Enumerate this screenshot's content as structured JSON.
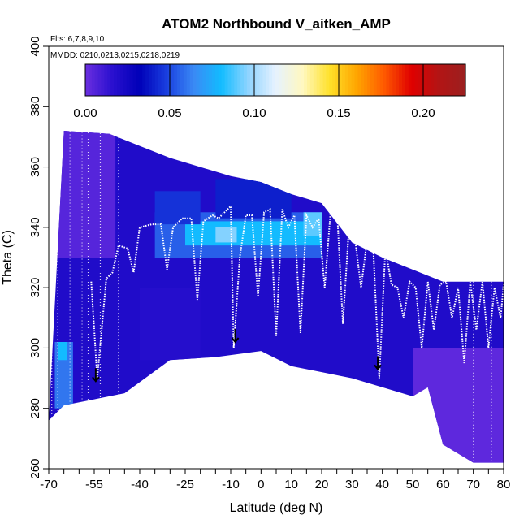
{
  "chart_data": {
    "type": "heatmap",
    "title": "ATOM2 Northbound V_aitken_AMP",
    "notes": [
      "Flts: 6,7,8,9,10",
      "MMDD: 0210,0213,0215,0218,0219"
    ],
    "xlabel": "Latitude (deg N)",
    "ylabel": "Theta (C)",
    "xlim": [
      -70,
      80
    ],
    "ylim": [
      260,
      400
    ],
    "x_ticks": [
      -70,
      -55,
      -40,
      -25,
      -10,
      0,
      10,
      20,
      30,
      40,
      50,
      60,
      70,
      80
    ],
    "x_tick_labels": [
      "-70",
      "-55",
      "-40",
      "-25",
      "-10",
      "0",
      "10",
      "20",
      "30",
      "40",
      "50",
      "60",
      "70",
      "80"
    ],
    "y_ticks": [
      260,
      280,
      300,
      320,
      340,
      360,
      380,
      400
    ],
    "y_tick_labels": [
      "260",
      "280",
      "300",
      "320",
      "340",
      "360",
      "380",
      "400"
    ],
    "colorbar": {
      "range": [
        0.0,
        0.225
      ],
      "ticks": [
        0.0,
        0.05,
        0.1,
        0.15,
        0.2
      ],
      "tick_labels": [
        "0.00",
        "0.05",
        "0.10",
        "0.15",
        "0.20"
      ],
      "colors": [
        "#6a2ee0",
        "#2a10cf",
        "#0000b8",
        "#1a3fe0",
        "#3a8af5",
        "#12bcff",
        "#8fd4ff",
        "#e6f2ff",
        "#fff8c0",
        "#ffe12a",
        "#ffa500",
        "#ff5a00",
        "#e00000",
        "#b31414",
        "#9b2020"
      ]
    },
    "upper_boundary": [
      [
        -65,
        372
      ],
      [
        -50,
        371
      ],
      [
        -40,
        367
      ],
      [
        -30,
        363
      ],
      [
        -20,
        360
      ],
      [
        -10,
        357
      ],
      [
        0,
        355
      ],
      [
        10,
        351
      ],
      [
        20,
        348
      ],
      [
        30,
        335
      ],
      [
        40,
        330
      ],
      [
        50,
        326
      ],
      [
        60,
        322
      ],
      [
        70,
        322
      ],
      [
        80,
        322
      ]
    ],
    "lower_boundary": [
      [
        -70,
        276
      ],
      [
        -65,
        281
      ],
      [
        -55,
        283
      ],
      [
        -45,
        285
      ],
      [
        -30,
        296
      ],
      [
        -15,
        297
      ],
      [
        0,
        299
      ],
      [
        10,
        294
      ],
      [
        20,
        292
      ],
      [
        30,
        290
      ],
      [
        40,
        287
      ],
      [
        50,
        284
      ],
      [
        55,
        287
      ],
      [
        60,
        268
      ],
      [
        70,
        262
      ],
      [
        80,
        262
      ]
    ],
    "background_value": 0.02,
    "regions": [
      {
        "lat": [
          -68,
          -62
        ],
        "theta": [
          280,
          302
        ],
        "value": 0.06
      },
      {
        "lat": [
          -67,
          -64
        ],
        "theta": [
          296,
          302
        ],
        "value": 0.08
      },
      {
        "lat": [
          -35,
          20
        ],
        "theta": [
          330,
          345
        ],
        "value": 0.055
      },
      {
        "lat": [
          -25,
          20
        ],
        "theta": [
          334,
          342
        ],
        "value": 0.08
      },
      {
        "lat": [
          -15,
          -8
        ],
        "theta": [
          335,
          340
        ],
        "value": 0.095
      },
      {
        "lat": [
          14,
          20
        ],
        "theta": [
          337,
          345
        ],
        "value": 0.09
      },
      {
        "lat": [
          -35,
          -20
        ],
        "theta": [
          341,
          352
        ],
        "value": 0.045
      },
      {
        "lat": [
          -15,
          10
        ],
        "theta": [
          343,
          356
        ],
        "value": 0.04
      },
      {
        "lat": [
          -70,
          -48
        ],
        "theta": [
          330,
          372
        ],
        "value": 0.005
      },
      {
        "lat": [
          50,
          80
        ],
        "theta": [
          262,
          300
        ],
        "value": 0.003
      },
      {
        "lat": [
          -40,
          -20
        ],
        "theta": [
          296,
          320
        ],
        "value": 0.018
      }
    ],
    "flight_track": [
      [
        -56,
        322
      ],
      [
        -54,
        290
      ],
      [
        -51,
        323
      ],
      [
        -49,
        325
      ],
      [
        -47,
        334
      ],
      [
        -44,
        333
      ],
      [
        -42,
        325
      ],
      [
        -40,
        340
      ],
      [
        -36,
        341
      ],
      [
        -33,
        341
      ],
      [
        -31,
        326
      ],
      [
        -29,
        340
      ],
      [
        -26,
        343
      ],
      [
        -23,
        343
      ],
      [
        -21,
        316
      ],
      [
        -19,
        342
      ],
      [
        -16,
        344
      ],
      [
        -14,
        343
      ],
      [
        -12,
        345
      ],
      [
        -10,
        347
      ],
      [
        -9,
        300
      ],
      [
        -7,
        330
      ],
      [
        -5,
        344
      ],
      [
        -3,
        344
      ],
      [
        -1,
        317
      ],
      [
        1,
        345
      ],
      [
        3,
        346
      ],
      [
        5,
        304
      ],
      [
        7,
        346
      ],
      [
        9,
        340
      ],
      [
        11,
        344
      ],
      [
        13,
        305
      ],
      [
        15,
        344
      ],
      [
        17,
        340
      ],
      [
        19,
        343
      ],
      [
        21,
        320
      ],
      [
        23,
        346
      ],
      [
        25,
        347
      ],
      [
        27,
        308
      ],
      [
        29,
        340
      ],
      [
        31,
        336
      ],
      [
        33,
        320
      ],
      [
        35,
        336
      ],
      [
        37,
        333
      ],
      [
        39,
        290
      ],
      [
        41,
        333
      ],
      [
        43,
        321
      ],
      [
        45,
        320
      ],
      [
        47,
        310
      ],
      [
        49,
        322
      ],
      [
        51,
        320
      ],
      [
        53,
        300
      ],
      [
        55,
        322
      ],
      [
        57,
        306
      ],
      [
        59,
        321
      ],
      [
        61,
        322
      ],
      [
        63,
        310
      ],
      [
        65,
        320
      ],
      [
        67,
        295
      ],
      [
        69,
        322
      ],
      [
        71,
        306
      ],
      [
        73,
        322
      ],
      [
        75,
        300
      ],
      [
        77,
        320
      ],
      [
        79,
        310
      ],
      [
        80,
        321
      ]
    ],
    "sample_columns": [
      -69,
      -67,
      -63,
      -59,
      -57,
      -53,
      -47,
      70,
      76
    ],
    "arrows": [
      [
        -54.5,
        289
      ],
      [
        -8.5,
        302
      ],
      [
        38.5,
        293
      ]
    ]
  }
}
